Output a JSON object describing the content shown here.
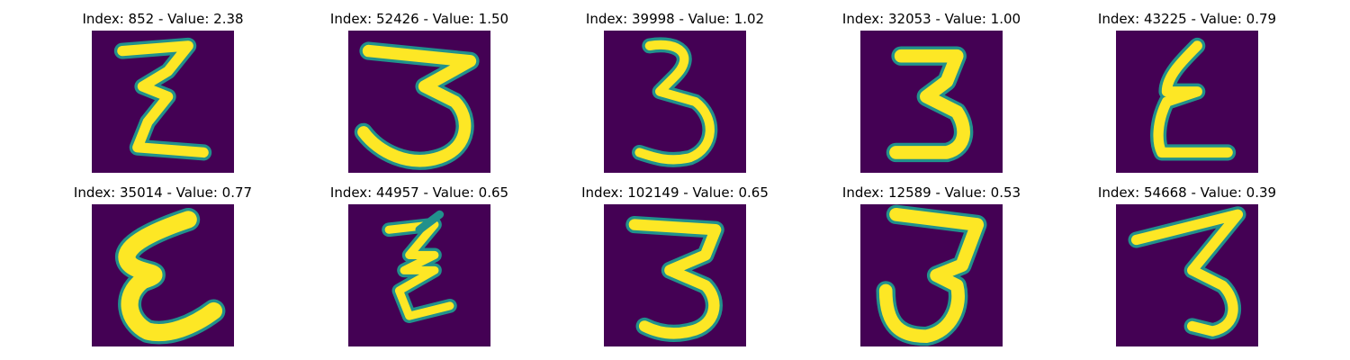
{
  "colors": {
    "background": "#440154",
    "stroke_outer": "#21918c",
    "stroke_inner": "#fde725"
  },
  "panels": [
    {
      "title": "Index: 852 - Value: 2.38",
      "glyph": "z-shape"
    },
    {
      "title": "Index: 52426 - Value: 1.50",
      "glyph": "three-wide"
    },
    {
      "title": "Index: 39998 - Value: 1.02",
      "glyph": "three-narrow"
    },
    {
      "title": "Index: 32053 - Value: 1.00",
      "glyph": "three-bold"
    },
    {
      "title": "Index: 43225 - Value: 0.79",
      "glyph": "epsilon"
    },
    {
      "title": "Index: 35014 - Value: 0.77",
      "glyph": "epsilon-bold"
    },
    {
      "title": "Index: 44957 - Value: 0.65",
      "glyph": "z-italic"
    },
    {
      "title": "Index: 102149 - Value: 0.65",
      "glyph": "three-regular"
    },
    {
      "title": "Index: 12589 - Value: 0.53",
      "glyph": "three-flat-top"
    },
    {
      "title": "Index: 54668 - Value: 0.39",
      "glyph": "three-slanted"
    }
  ]
}
